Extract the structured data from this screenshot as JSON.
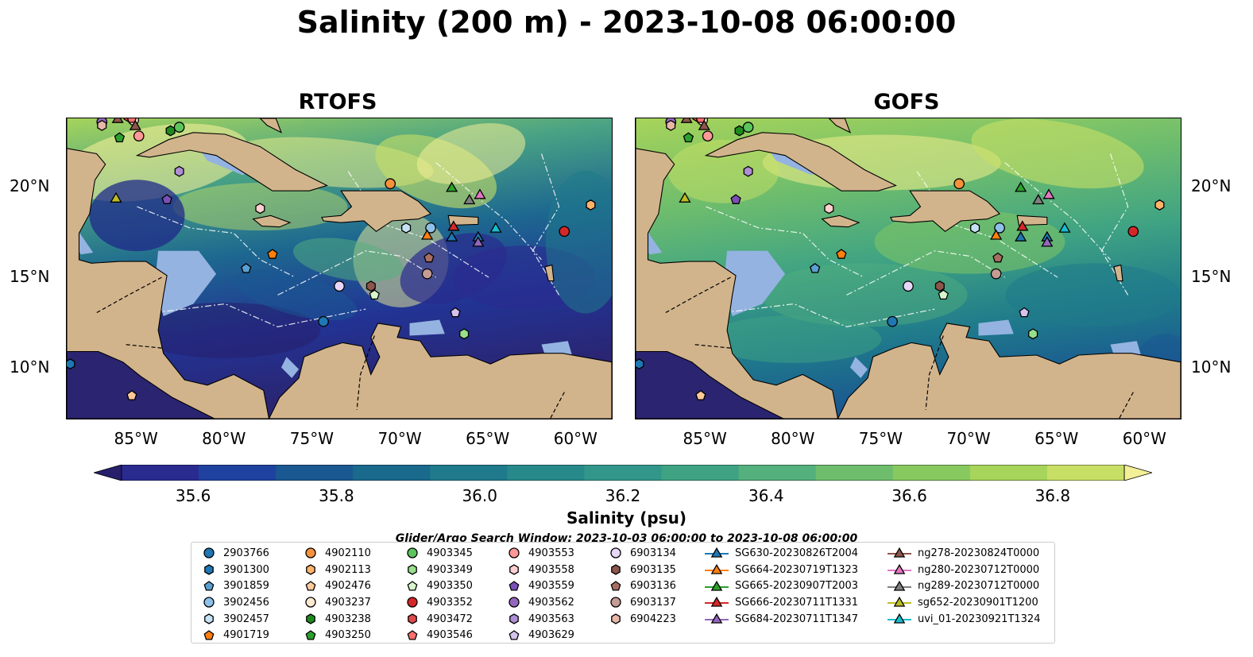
{
  "title": "Salinity (200 m) - 2023-10-08 06:00:00",
  "panels": [
    {
      "title": "RTOFS"
    },
    {
      "title": "GOFS"
    }
  ],
  "map_axes": {
    "lon_labels": [
      "85°W",
      "80°W",
      "75°W",
      "70°W",
      "65°W",
      "60°W"
    ],
    "lat_labels": [
      "20°N",
      "15°N",
      "10°N"
    ],
    "lon_range": [
      -89,
      -58
    ],
    "lat_range": [
      7,
      24
    ]
  },
  "colorbar": {
    "label": "Salinity (psu)",
    "ticks": [
      "35.6",
      "35.8",
      "36.0",
      "36.2",
      "36.4",
      "36.6",
      "36.8"
    ],
    "colors": [
      "#261f6b",
      "#2a2b8f",
      "#1f42a0",
      "#1a5891",
      "#196a8c",
      "#1f7a8b",
      "#28898a",
      "#32978a",
      "#3fa383",
      "#54b07d",
      "#6ebd6d",
      "#88c95f",
      "#a7d45a",
      "#c8df66",
      "#f3ef96"
    ]
  },
  "search_window": "Glider/Argo Search Window: 2023-10-03 06:00:00 to 2023-10-08 06:00:00",
  "colors": {
    "land": "#d2b48c",
    "shelf": "#94b3e1"
  },
  "legend": {
    "columns": [
      [
        {
          "label": "2903766",
          "marker": "circle",
          "color": "#1f77b4"
        },
        {
          "label": "3901300",
          "marker": "hexagon",
          "color": "#1f77b4"
        },
        {
          "label": "3901859",
          "marker": "pentagon",
          "color": "#5b9fd0"
        },
        {
          "label": "3902456",
          "marker": "circle",
          "color": "#8fc1e8"
        },
        {
          "label": "3902457",
          "marker": "hexagon",
          "color": "#c6e3f5"
        },
        {
          "label": "4901719",
          "marker": "pentagon",
          "color": "#ff7f0e"
        }
      ],
      [
        {
          "label": "4902110",
          "marker": "circle",
          "color": "#f5923a"
        },
        {
          "label": "4902113",
          "marker": "hexagon",
          "color": "#ffb36b"
        },
        {
          "label": "4902476",
          "marker": "pentagon",
          "color": "#ffc999"
        },
        {
          "label": "4903237",
          "marker": "circle",
          "color": "#fde9cf"
        },
        {
          "label": "4903238",
          "marker": "hexagon",
          "color": "#1e8a1e"
        },
        {
          "label": "4903250",
          "marker": "pentagon",
          "color": "#2ca02c"
        }
      ],
      [
        {
          "label": "4903345",
          "marker": "circle",
          "color": "#5cc45c"
        },
        {
          "label": "4903349",
          "marker": "hexagon",
          "color": "#98df8a"
        },
        {
          "label": "4903350",
          "marker": "pentagon",
          "color": "#d8f5cc"
        },
        {
          "label": "4903352",
          "marker": "circle",
          "color": "#d62728"
        },
        {
          "label": "4903472",
          "marker": "hexagon",
          "color": "#e04a4a"
        },
        {
          "label": "4903546",
          "marker": "pentagon",
          "color": "#ff6f6f"
        }
      ],
      [
        {
          "label": "4903553",
          "marker": "circle",
          "color": "#ff9896"
        },
        {
          "label": "4903558",
          "marker": "hexagon",
          "color": "#ffd0cf"
        },
        {
          "label": "4903559",
          "marker": "pentagon",
          "color": "#7b4fb8"
        },
        {
          "label": "4903562",
          "marker": "circle",
          "color": "#9467bd"
        },
        {
          "label": "4903563",
          "marker": "hexagon",
          "color": "#b08ed6"
        },
        {
          "label": "4903629",
          "marker": "pentagon",
          "color": "#d5c3ee"
        }
      ],
      [
        {
          "label": "6903134",
          "marker": "circle",
          "color": "#e7d6f7"
        },
        {
          "label": "6903135",
          "marker": "hexagon",
          "color": "#8c564b"
        },
        {
          "label": "6903136",
          "marker": "pentagon",
          "color": "#a66f62"
        },
        {
          "label": "6903137",
          "marker": "circle",
          "color": "#c49c94"
        },
        {
          "label": "6904223",
          "marker": "hexagon",
          "color": "#e8b7a8"
        }
      ],
      [
        {
          "label": "SG630-20230826T2004",
          "marker": "triangle",
          "color": "#1f77b4"
        },
        {
          "label": "SG664-20230719T1323",
          "marker": "triangle",
          "color": "#ff7f0e"
        },
        {
          "label": "SG665-20230907T2003",
          "marker": "triangle",
          "color": "#2ca02c"
        },
        {
          "label": "SG666-20230711T1331",
          "marker": "triangle",
          "color": "#d62728"
        },
        {
          "label": "SG684-20230711T1347",
          "marker": "triangle",
          "color": "#9467bd"
        }
      ],
      [
        {
          "label": "ng278-20230824T0000",
          "marker": "triangle",
          "color": "#8c564b"
        },
        {
          "label": "ng280-20230712T0000",
          "marker": "triangle",
          "color": "#e377c2"
        },
        {
          "label": "ng289-20230712T0000",
          "marker": "triangle",
          "color": "#7f7f7f"
        },
        {
          "label": "sg652-20230901T1200",
          "marker": "triangle",
          "color": "#bcbd22"
        },
        {
          "label": "uvi_01-20230921T1324",
          "marker": "triangle",
          "color": "#17becf"
        }
      ]
    ]
  },
  "observations": [
    {
      "id": "2903766",
      "lon": -74.4,
      "lat": 12.5
    },
    {
      "id": "3901300",
      "lon": -88.8,
      "lat": 10.1
    },
    {
      "id": "3901859",
      "lon": -78.8,
      "lat": 15.5
    },
    {
      "id": "3902456",
      "lon": -68.3,
      "lat": 17.8
    },
    {
      "id": "3902457",
      "lon": -69.7,
      "lat": 17.8
    },
    {
      "id": "4901719",
      "lon": -77.3,
      "lat": 16.3
    },
    {
      "id": "4902110",
      "lon": -70.6,
      "lat": 20.3
    },
    {
      "id": "4902113",
      "lon": -59.2,
      "lat": 19.1
    },
    {
      "id": "4902476",
      "lon": -85.3,
      "lat": 8.3
    },
    {
      "id": "4903237",
      "lon": -85.2,
      "lat": 23.9
    },
    {
      "id": "4903238",
      "lon": -83.1,
      "lat": 23.3
    },
    {
      "id": "4903250",
      "lon": -86.0,
      "lat": 22.9
    },
    {
      "id": "4903345",
      "lon": -82.6,
      "lat": 23.5
    },
    {
      "id": "4903349",
      "lon": -66.4,
      "lat": 11.8
    },
    {
      "id": "4903350",
      "lon": -71.5,
      "lat": 14.0
    },
    {
      "id": "4903352",
      "lon": -60.7,
      "lat": 17.6
    },
    {
      "id": "4903472",
      "lon": -85.5,
      "lat": 24.1
    },
    {
      "id": "4903546",
      "lon": -85.3,
      "lat": 24.0
    },
    {
      "id": "4903553",
      "lon": -84.9,
      "lat": 23.0
    },
    {
      "id": "4903558",
      "lon": -78.0,
      "lat": 18.9
    },
    {
      "id": "4903559",
      "lon": -83.3,
      "lat": 19.4
    },
    {
      "id": "4903562",
      "lon": -87.0,
      "lat": 23.8
    },
    {
      "id": "4903563",
      "lon": -82.6,
      "lat": 21.0
    },
    {
      "id": "4903629",
      "lon": -66.9,
      "lat": 13.0
    },
    {
      "id": "6903134",
      "lon": -73.5,
      "lat": 14.5
    },
    {
      "id": "6903135",
      "lon": -71.7,
      "lat": 14.5
    },
    {
      "id": "6903136",
      "lon": -68.4,
      "lat": 16.1
    },
    {
      "id": "6903137",
      "lon": -68.5,
      "lat": 15.2
    },
    {
      "id": "6904223",
      "lon": -87.0,
      "lat": 23.6
    },
    {
      "id": "SG630-20230826T2004",
      "lon": -65.6,
      "lat": 17.3
    },
    {
      "id": "SG664-20230719T1323",
      "lon": -68.5,
      "lat": 17.4
    },
    {
      "id": "SG665-20230907T2003",
      "lon": -67.1,
      "lat": 20.1
    },
    {
      "id": "SG666-20230711T1331",
      "lon": -67.0,
      "lat": 17.9
    },
    {
      "id": "SG684-20230711T1347",
      "lon": -65.6,
      "lat": 17.0
    },
    {
      "id": "ng278-20230824T0000",
      "lon": -86.1,
      "lat": 24.0
    },
    {
      "id": "ng280-20230712T0000",
      "lon": -65.5,
      "lat": 19.7
    },
    {
      "id": "ng289-20230712T0000",
      "lon": -66.1,
      "lat": 19.4
    },
    {
      "id": "sg652-20230901T1200",
      "lon": -86.2,
      "lat": 19.5
    },
    {
      "id": "uvi_01-20230921T1324",
      "lon": -64.6,
      "lat": 17.8
    },
    {
      "id": "SG630-20230826T2004",
      "lon": -67.1,
      "lat": 17.3
    },
    {
      "id": "ng278-20230824T0000",
      "lon": -85.1,
      "lat": 23.6
    }
  ]
}
